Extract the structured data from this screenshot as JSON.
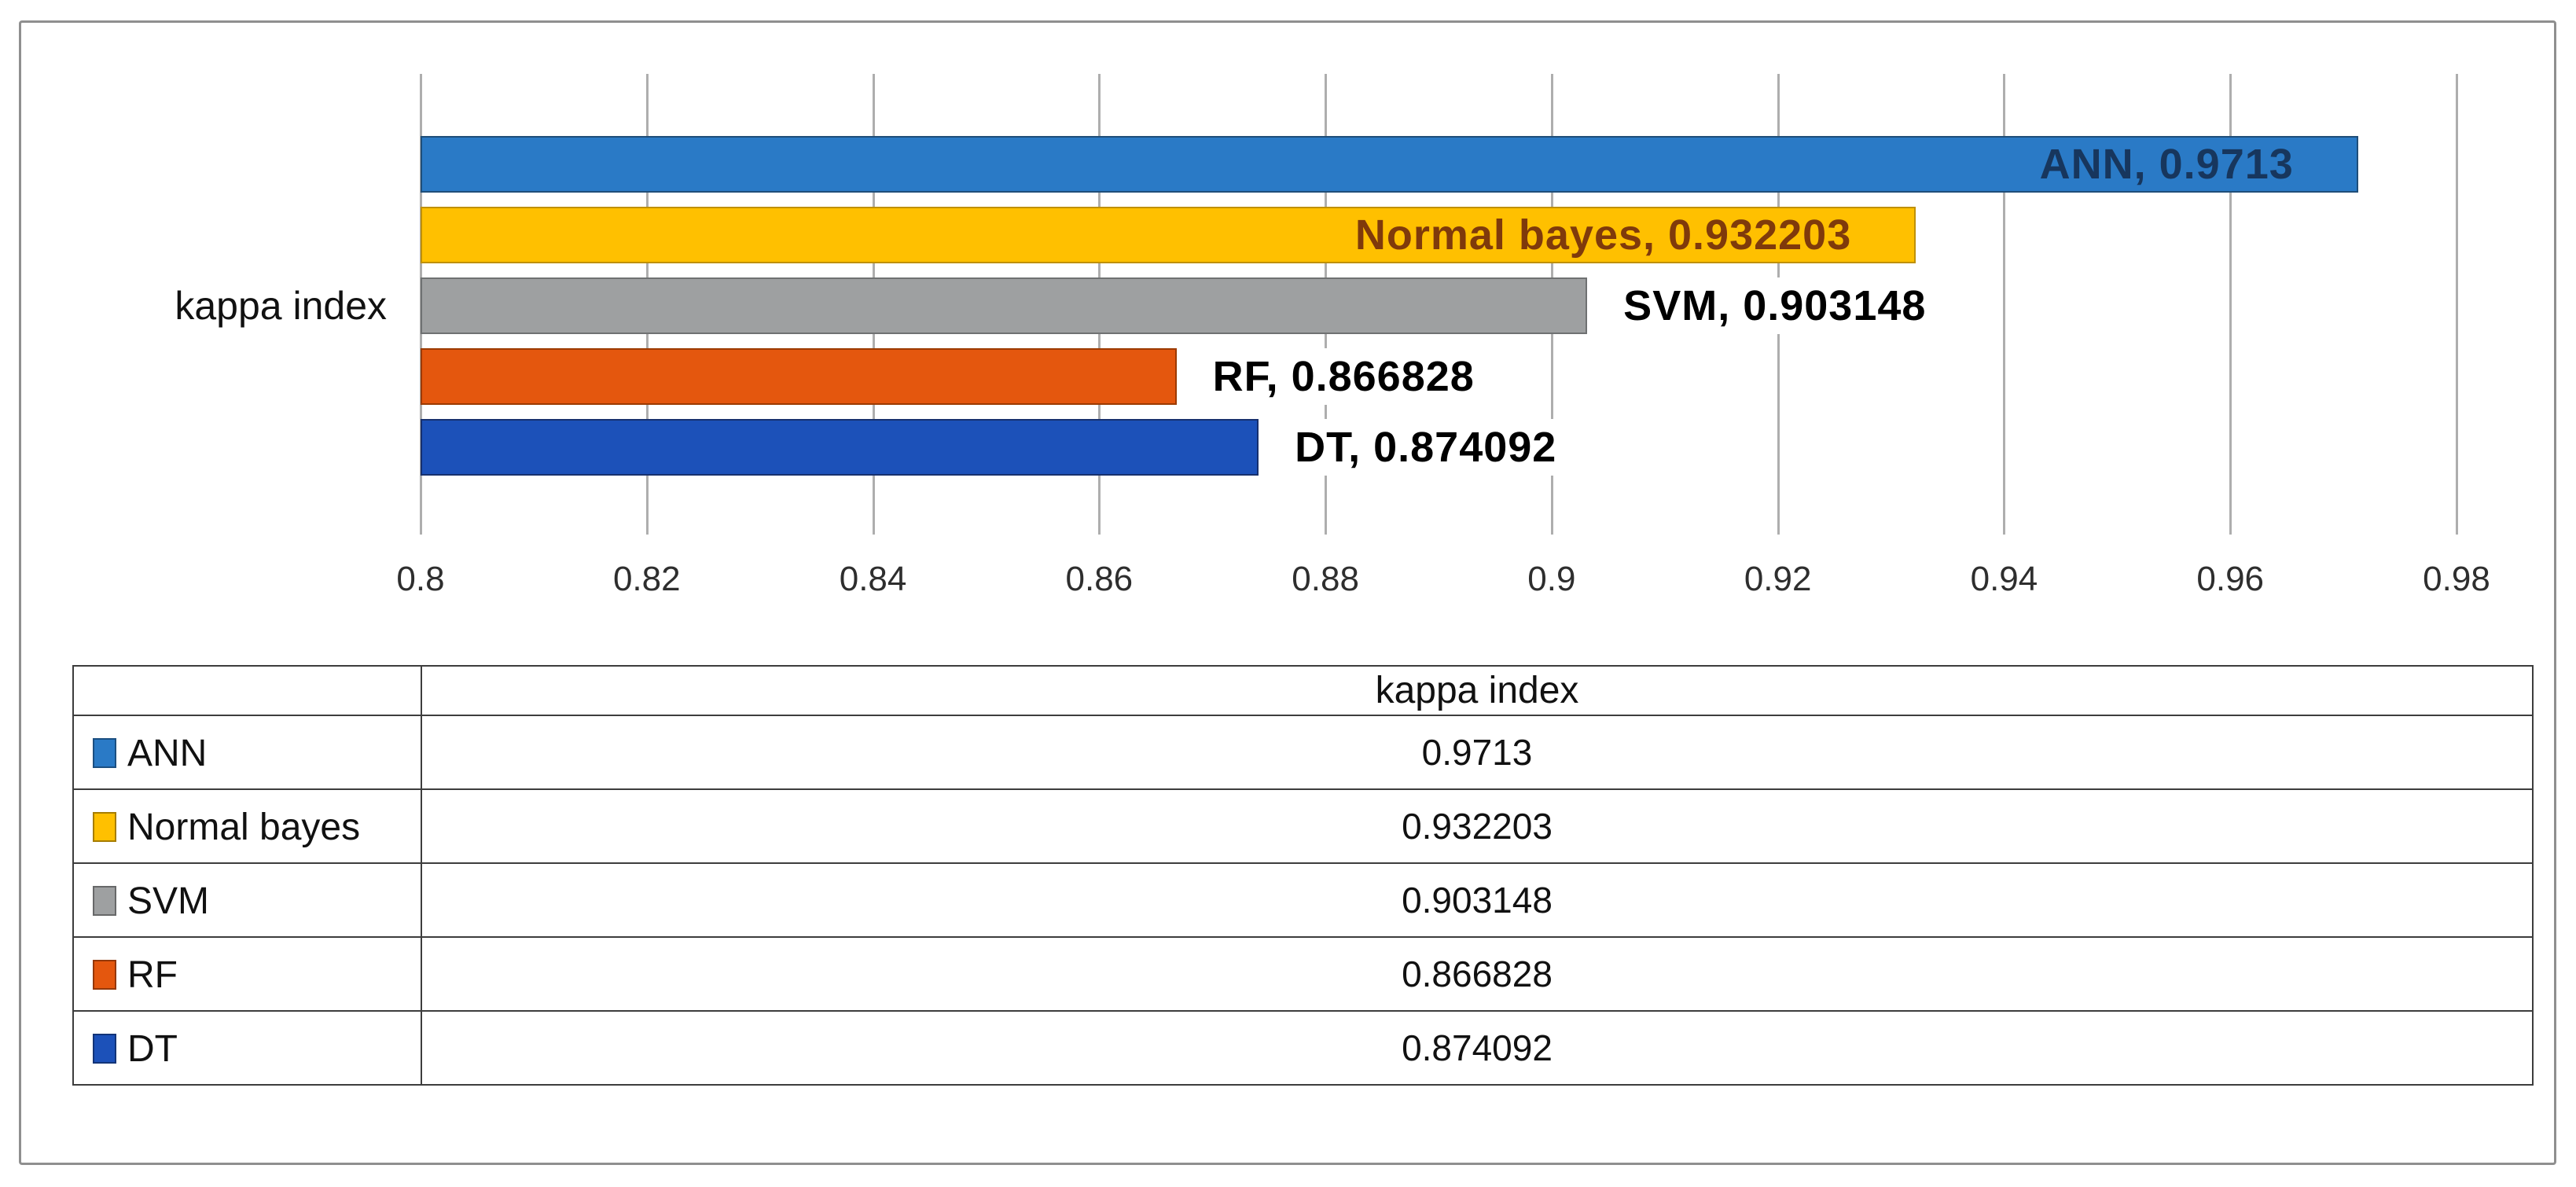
{
  "figure": {
    "category_axis_label": "kappa index"
  },
  "chart_data": {
    "type": "bar",
    "orientation": "horizontal",
    "title": "",
    "categories": [
      "ANN",
      "Normal bayes",
      "SVM",
      "RF",
      "DT"
    ],
    "values": [
      0.9713,
      0.932203,
      0.903148,
      0.866828,
      0.874092
    ],
    "value_labels": [
      "ANN, 0.9713",
      "Normal bayes, 0.932203",
      "SVM, 0.903148",
      "RF, 0.866828",
      "DT, 0.874092"
    ],
    "label_placement": [
      "inside-end",
      "inside-end",
      "outside-end",
      "outside-end",
      "outside-end"
    ],
    "bar_colors": [
      "#2a7ac6",
      "#ffc000",
      "#9ea0a1",
      "#e4570e",
      "#1c51b9"
    ],
    "bar_border_colors": [
      "#1f4e79",
      "#bf9000",
      "#6f7172",
      "#9c3a00",
      "#17306e"
    ],
    "label_colors": [
      "#17365d",
      "#7f3a0b",
      "#000000",
      "#000000",
      "#000000"
    ],
    "xlabel": "",
    "ylabel": "kappa index",
    "xlim": [
      0.8,
      0.98
    ],
    "xticks": [
      0.8,
      0.82,
      0.84,
      0.86,
      0.88,
      0.9,
      0.92,
      0.94,
      0.96,
      0.98
    ],
    "xtick_labels": [
      "0.8",
      "0.82",
      "0.84",
      "0.86",
      "0.88",
      "0.9",
      "0.92",
      "0.94",
      "0.96",
      "0.98"
    ],
    "grid": true,
    "gridline_color": "#aeaeae",
    "legend_position": "table-left-column"
  },
  "table": {
    "header": "kappa index",
    "rows": [
      {
        "label": "ANN",
        "value": "0.9713",
        "swatch": "#2a7ac6"
      },
      {
        "label": "Normal bayes",
        "value": "0.932203",
        "swatch": "#ffc000"
      },
      {
        "label": "SVM",
        "value": "0.903148",
        "swatch": "#9ea0a1"
      },
      {
        "label": "RF",
        "value": "0.866828",
        "swatch": "#e4570e"
      },
      {
        "label": "DT",
        "value": "0.874092",
        "swatch": "#1c51b9"
      }
    ]
  }
}
